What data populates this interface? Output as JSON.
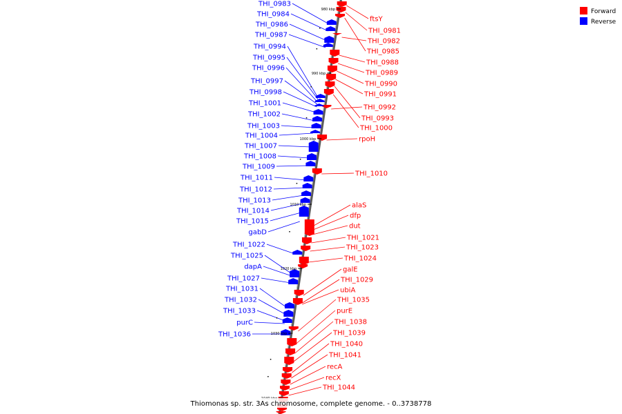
{
  "caption": "Thiomonas sp. str. 3As chromosome, complete genome. - 0..3738778",
  "legend": [
    {
      "name": "Forward",
      "color": "#ff0000"
    },
    {
      "name": "Reverse",
      "color": "#0000ff"
    }
  ],
  "colors": {
    "forward": "#ff0000",
    "reverse": "#0000ff",
    "backbone": "#808080"
  },
  "ticks": [
    "980 kbp",
    "990 kbp",
    "1000 kbp",
    "1010 kbp",
    "1020 kbp",
    "1030 kbp",
    "1040 kbp"
  ],
  "forward_labels": [
    "ftsY",
    "THI_0981",
    "THI_0982",
    "THI_0985",
    "THI_0988",
    "THI_0989",
    "THI_0990",
    "THI_0991",
    "THI_0992",
    "THI_0993",
    "THI_1000",
    "rpoH",
    "THI_1010",
    "alaS",
    "dfp",
    "dut",
    "THI_1021",
    "THI_1023",
    "THI_1024",
    "galE",
    "THI_1029",
    "ubiA",
    "THI_1035",
    "purE",
    "THI_1038",
    "THI_1039",
    "THI_1040",
    "THI_1041",
    "recA",
    "recX",
    "THI_1044"
  ],
  "reverse_labels": [
    "THI_0983",
    "THI_0984",
    "THI_0986",
    "THI_0987",
    "THI_0994",
    "THI_0995",
    "THI_0996",
    "THI_0997",
    "THI_0998",
    "THI_1001",
    "THI_1002",
    "THI_1003",
    "THI_1004",
    "THI_1007",
    "THI_1008",
    "THI_1009",
    "THI_1011",
    "THI_1012",
    "THI_1013",
    "THI_1014",
    "THI_1015",
    "gabD",
    "THI_1022",
    "THI_1025",
    "dapA",
    "THI_1027",
    "THI_1031",
    "THI_1032",
    "THI_1033",
    "purC",
    "THI_1036"
  ]
}
